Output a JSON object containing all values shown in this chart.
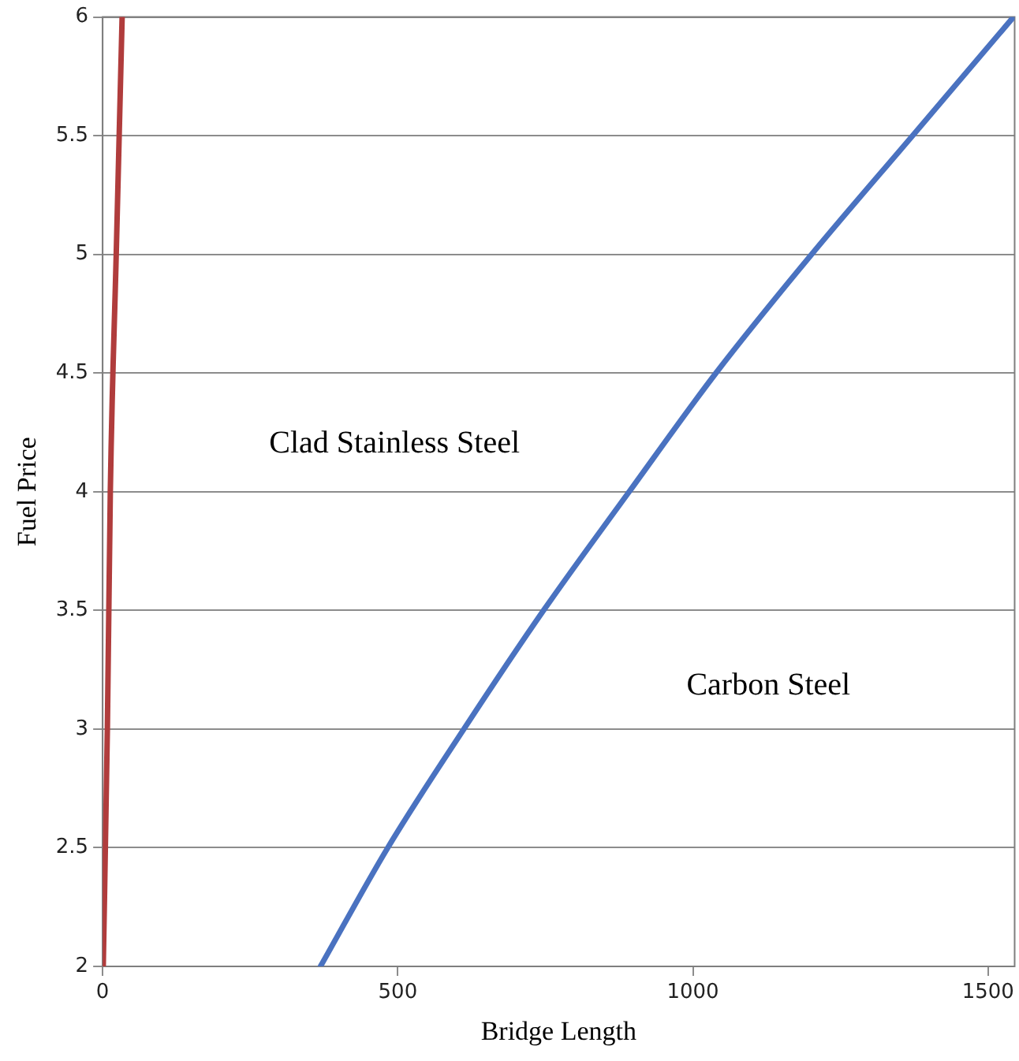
{
  "chart_data": {
    "type": "line",
    "xlabel": "Bridge Length",
    "ylabel": "Fuel Price",
    "series": [
      {
        "color": "#b03c3c",
        "x": [
          1,
          8,
          13,
          23,
          33
        ],
        "values": [
          2,
          3,
          4,
          5,
          6
        ]
      },
      {
        "color": "#4a72c0",
        "x": [
          369,
          483,
          612,
          747,
          892,
          1039,
          1201,
          1372,
          1543
        ],
        "values": [
          2,
          2.5,
          3,
          3.5,
          4,
          4.5,
          5,
          5.5,
          6
        ]
      }
    ],
    "xlim": [
      0,
      1545
    ],
    "xticks": [
      0,
      500,
      1000,
      1500
    ],
    "ylim": [
      2,
      6
    ],
    "yticks": [
      2,
      2.5,
      3,
      3.5,
      4,
      4.5,
      5,
      5.5,
      6
    ],
    "grid": "y",
    "legend": false,
    "marker": "none",
    "line_style": "solid",
    "annotations": [
      "Clad Stainless Steel",
      "Carbon Steel"
    ]
  }
}
